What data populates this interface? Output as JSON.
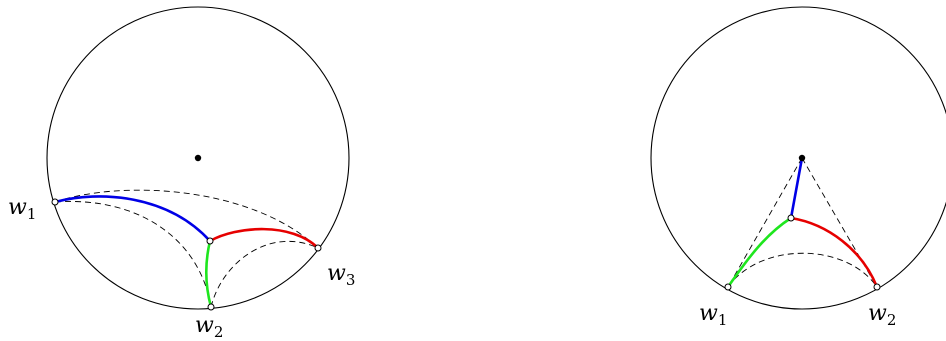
{
  "colors": {
    "blue": "#0000e6",
    "red": "#e60000",
    "green": "#1ee61e",
    "ink": "#000000"
  },
  "left_diagram": {
    "labels": {
      "w1": {
        "base": "w",
        "sub": "1"
      },
      "w2": {
        "base": "w",
        "sub": "2"
      },
      "w3": {
        "base": "w",
        "sub": "3"
      }
    }
  },
  "right_diagram": {
    "labels": {
      "w1": {
        "base": "w",
        "sub": "1"
      },
      "w2": {
        "base": "w",
        "sub": "2"
      }
    }
  }
}
